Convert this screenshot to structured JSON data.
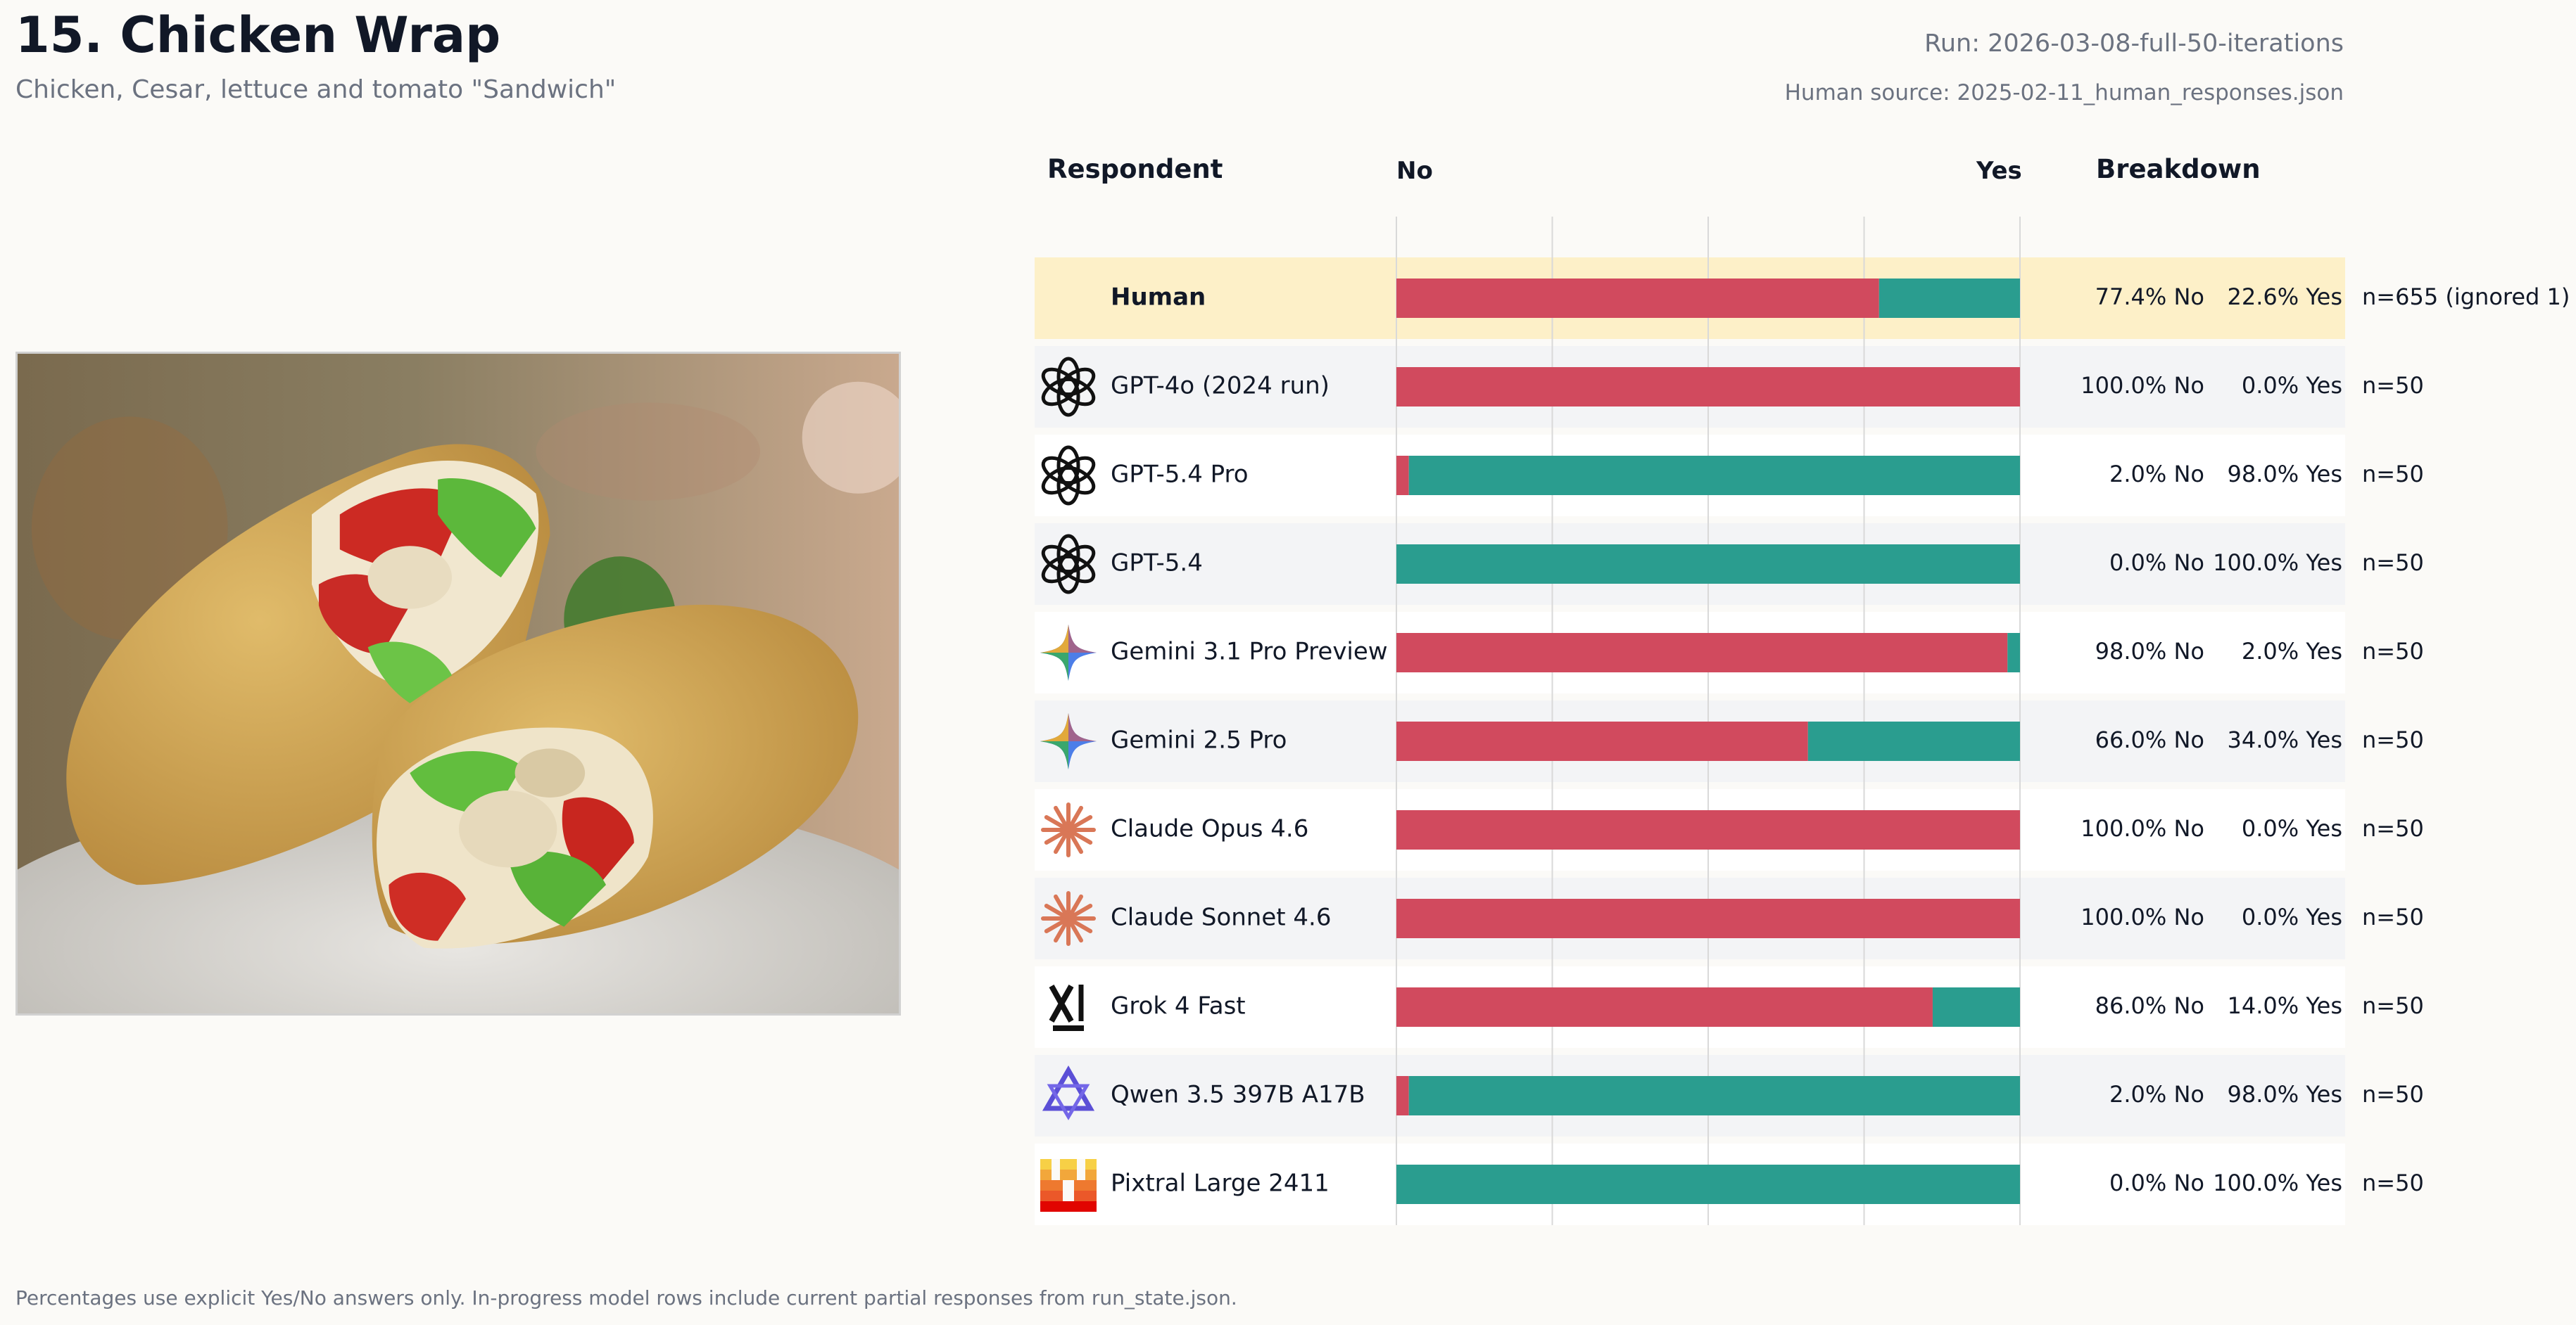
{
  "header": {
    "title": "15. Chicken Wrap",
    "subtitle": "Chicken, Cesar, lettuce and tomato \"Sandwich\"",
    "run": "Run: 2026-03-08-full-50-iterations",
    "human_source": "Human source: 2025-02-11_human_responses.json"
  },
  "columns": {
    "respondent": "Respondent",
    "no": "No",
    "yes": "Yes",
    "breakdown": "Breakdown"
  },
  "footer": "Percentages use explicit Yes/No answers only. In-progress model rows include current partial responses from run_state.json.",
  "colors": {
    "no": "#d14a5e",
    "yes": "#2a9d8f",
    "human_highlight": "#fdf0c8",
    "row_alt": "#f3f4f6",
    "row": "#ffffff",
    "grid": "#d9d9d9"
  },
  "chart_data": {
    "type": "bar",
    "orientation": "horizontal",
    "stacked": true,
    "xlim": [
      0,
      100
    ],
    "grid": true,
    "series_names": [
      "No",
      "Yes"
    ],
    "rows": [
      {
        "name": "Human",
        "icon": "human-icon",
        "highlight": true,
        "no": 77.4,
        "yes": 22.6,
        "no_label": "77.4% No",
        "yes_label": "22.6% Yes",
        "n_label": "n=655 (ignored 1)"
      },
      {
        "name": "GPT-4o (2024 run)",
        "icon": "openai-icon",
        "no": 100.0,
        "yes": 0.0,
        "no_label": "100.0% No",
        "yes_label": "0.0% Yes",
        "n_label": "n=50"
      },
      {
        "name": "GPT-5.4 Pro",
        "icon": "openai-icon",
        "no": 2.0,
        "yes": 98.0,
        "no_label": "2.0% No",
        "yes_label": "98.0% Yes",
        "n_label": "n=50"
      },
      {
        "name": "GPT-5.4",
        "icon": "openai-icon",
        "no": 0.0,
        "yes": 100.0,
        "no_label": "0.0% No",
        "yes_label": "100.0% Yes",
        "n_label": "n=50"
      },
      {
        "name": "Gemini 3.1 Pro Preview",
        "icon": "gemini-icon",
        "no": 98.0,
        "yes": 2.0,
        "no_label": "98.0% No",
        "yes_label": "2.0% Yes",
        "n_label": "n=50"
      },
      {
        "name": "Gemini 2.5 Pro",
        "icon": "gemini-icon",
        "no": 66.0,
        "yes": 34.0,
        "no_label": "66.0% No",
        "yes_label": "34.0% Yes",
        "n_label": "n=50"
      },
      {
        "name": "Claude Opus 4.6",
        "icon": "claude-icon",
        "no": 100.0,
        "yes": 0.0,
        "no_label": "100.0% No",
        "yes_label": "0.0% Yes",
        "n_label": "n=50"
      },
      {
        "name": "Claude Sonnet 4.6",
        "icon": "claude-icon",
        "no": 100.0,
        "yes": 0.0,
        "no_label": "100.0% No",
        "yes_label": "0.0% Yes",
        "n_label": "n=50"
      },
      {
        "name": "Grok 4 Fast",
        "icon": "grok-icon",
        "no": 86.0,
        "yes": 14.0,
        "no_label": "86.0% No",
        "yes_label": "14.0% Yes",
        "n_label": "n=50"
      },
      {
        "name": "Qwen 3.5 397B A17B",
        "icon": "qwen-icon",
        "no": 2.0,
        "yes": 98.0,
        "no_label": "2.0% No",
        "yes_label": "98.0% Yes",
        "n_label": "n=50"
      },
      {
        "name": "Pixtral Large 2411",
        "icon": "mistral-icon",
        "no": 0.0,
        "yes": 100.0,
        "no_label": "0.0% No",
        "yes_label": "100.0% Yes",
        "n_label": "n=50"
      }
    ]
  }
}
